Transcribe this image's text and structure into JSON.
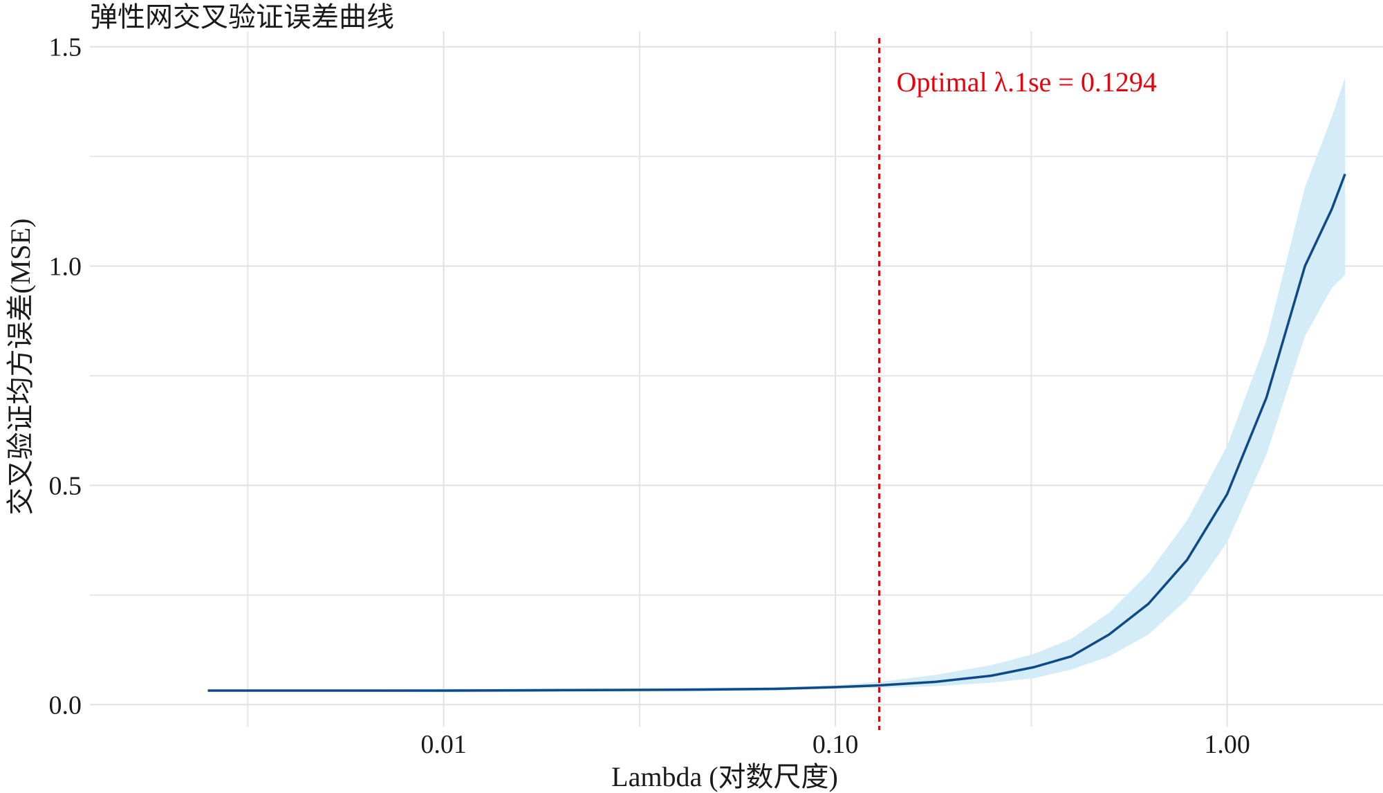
{
  "chart_data": {
    "type": "line",
    "title": "弹性网交叉验证误差曲线",
    "xlabel": "Lambda (对数尺度)",
    "ylabel": "交叉验证均方误差(MSE)",
    "x_scale": "log10",
    "xlim": [
      0.00125,
      2.5
    ],
    "ylim": [
      -0.05,
      1.52
    ],
    "x_ticks": [
      {
        "value": 0.01,
        "label": "0.01"
      },
      {
        "value": 0.1,
        "label": "0.10"
      },
      {
        "value": 1.0,
        "label": "1.00"
      }
    ],
    "y_ticks": [
      {
        "value": 0.0,
        "label": "0.0"
      },
      {
        "value": 0.5,
        "label": "0.5"
      },
      {
        "value": 1.0,
        "label": "1.0"
      },
      {
        "value": 1.5,
        "label": "1.5"
      }
    ],
    "grid": true,
    "series": [
      {
        "color": "#0d4a86",
        "band_color": "#d3ecf8",
        "points": [
          {
            "x": 0.0025,
            "y": 0.032,
            "lo": 0.031,
            "hi": 0.033
          },
          {
            "x": 0.005,
            "y": 0.032,
            "lo": 0.03,
            "hi": 0.034
          },
          {
            "x": 0.01,
            "y": 0.032,
            "lo": 0.028,
            "hi": 0.036
          },
          {
            "x": 0.02,
            "y": 0.033,
            "lo": 0.029,
            "hi": 0.037
          },
          {
            "x": 0.04,
            "y": 0.034,
            "lo": 0.03,
            "hi": 0.038
          },
          {
            "x": 0.07,
            "y": 0.036,
            "lo": 0.032,
            "hi": 0.04
          },
          {
            "x": 0.1,
            "y": 0.04,
            "lo": 0.036,
            "hi": 0.044
          },
          {
            "x": 0.13,
            "y": 0.044,
            "lo": 0.038,
            "hi": 0.052
          },
          {
            "x": 0.18,
            "y": 0.052,
            "lo": 0.042,
            "hi": 0.068
          },
          {
            "x": 0.25,
            "y": 0.066,
            "lo": 0.05,
            "hi": 0.09
          },
          {
            "x": 0.32,
            "y": 0.085,
            "lo": 0.06,
            "hi": 0.115
          },
          {
            "x": 0.4,
            "y": 0.11,
            "lo": 0.08,
            "hi": 0.15
          },
          {
            "x": 0.5,
            "y": 0.16,
            "lo": 0.11,
            "hi": 0.21
          },
          {
            "x": 0.63,
            "y": 0.23,
            "lo": 0.16,
            "hi": 0.3
          },
          {
            "x": 0.79,
            "y": 0.33,
            "lo": 0.24,
            "hi": 0.42
          },
          {
            "x": 1.0,
            "y": 0.48,
            "lo": 0.37,
            "hi": 0.59
          },
          {
            "x": 1.26,
            "y": 0.7,
            "lo": 0.57,
            "hi": 0.83
          },
          {
            "x": 1.58,
            "y": 1.0,
            "lo": 0.84,
            "hi": 1.18
          },
          {
            "x": 1.85,
            "y": 1.13,
            "lo": 0.95,
            "hi": 1.34
          },
          {
            "x": 2.0,
            "y": 1.21,
            "lo": 0.98,
            "hi": 1.43
          }
        ]
      }
    ],
    "vline": {
      "x": 0.1294,
      "color": "#e8000b",
      "style": "dashed"
    },
    "annotation": {
      "text": "Optimal λ.1se = 0.1294",
      "color": "#e8000b"
    }
  }
}
